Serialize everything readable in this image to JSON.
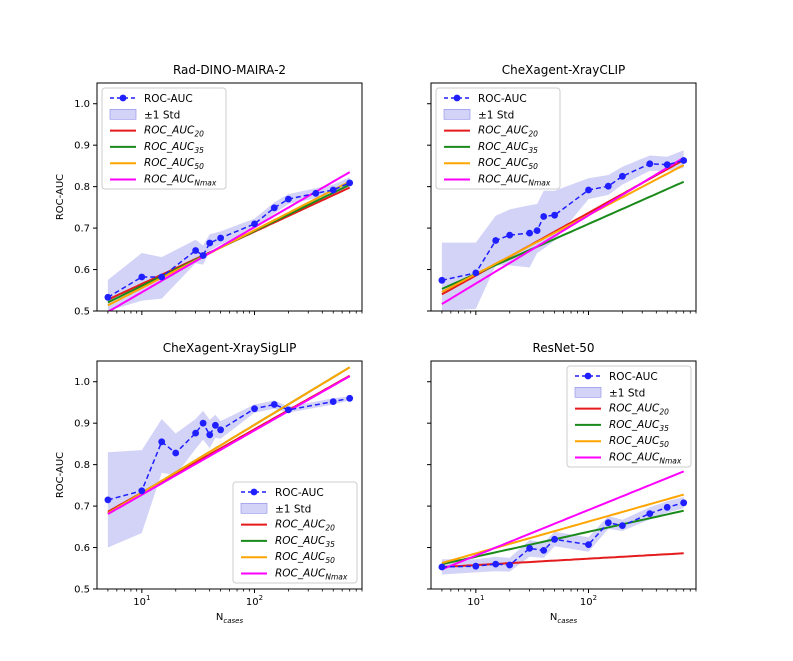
{
  "figure": {
    "ylabel": "ROC-AUC",
    "xlabel_main": "N",
    "xlabel_sub": "cases"
  },
  "colors": {
    "roc": "#1f1fff",
    "band": "#b6b6f4",
    "fit20": "#e41a1c",
    "fit35": "#1a8a1a",
    "fit50": "#ffa500",
    "fitN": "#ff00ff"
  },
  "legend_labels": {
    "roc": "ROC-AUC",
    "std": "±1 Std",
    "fit_prefix": "ROC_AUC",
    "fit_subs": [
      "20",
      "35",
      "50",
      "Nmax"
    ]
  },
  "chart_data": [
    {
      "type": "line",
      "title": "Rad-DINO-MAIRA-2",
      "xscale": "log",
      "xlim": [
        4,
        900
      ],
      "ylim": [
        0.5,
        1.05
      ],
      "x_ticks": [
        "10",
        "100"
      ],
      "y_ticks": [
        "0.5",
        "0.6",
        "0.7",
        "0.8",
        "0.9",
        "1.0"
      ],
      "show_x_ticklabels": false,
      "show_y_ticklabels": true,
      "legend_position": "top-left",
      "roc": {
        "x": [
          5,
          10,
          15,
          30,
          35,
          40,
          50,
          100,
          150,
          200,
          350,
          500,
          700
        ],
        "y": [
          0.533,
          0.582,
          0.582,
          0.646,
          0.634,
          0.664,
          0.676,
          0.71,
          0.749,
          0.77,
          0.784,
          0.792,
          0.809
        ]
      },
      "std_band": {
        "x": [
          5,
          10,
          15,
          30,
          35,
          40,
          50,
          100,
          150,
          200,
          350,
          500,
          700
        ],
        "lower": [
          0.5,
          0.525,
          0.53,
          0.615,
          0.612,
          0.645,
          0.66,
          0.698,
          0.735,
          0.758,
          0.772,
          0.78,
          0.795
        ],
        "upper": [
          0.575,
          0.64,
          0.63,
          0.672,
          0.658,
          0.685,
          0.692,
          0.723,
          0.762,
          0.782,
          0.796,
          0.805,
          0.823
        ]
      },
      "fits": [
        {
          "name": "ROC_AUC20",
          "a": 0.4394,
          "b": 0.0547
        },
        {
          "name": "ROC_AUC35",
          "a": 0.4285,
          "b": 0.0574
        },
        {
          "name": "ROC_AUC50",
          "a": 0.4166,
          "b": 0.0604
        },
        {
          "name": "ROC_AUCNmax",
          "a": 0.3882,
          "b": 0.0682
        }
      ]
    },
    {
      "type": "line",
      "title": "CheXagent-XrayCLIP",
      "xscale": "log",
      "xlim": [
        4,
        900
      ],
      "ylim": [
        0.5,
        1.05
      ],
      "x_ticks": [
        "10",
        "100"
      ],
      "y_ticks": [
        "0.5",
        "0.6",
        "0.7",
        "0.8",
        "0.9",
        "1.0"
      ],
      "show_x_ticklabels": false,
      "show_y_ticklabels": false,
      "legend_position": "top-left",
      "roc": {
        "x": [
          5,
          10,
          15,
          20,
          30,
          35,
          40,
          50,
          100,
          150,
          200,
          350,
          500,
          700
        ],
        "y": [
          0.574,
          0.592,
          0.67,
          0.683,
          0.688,
          0.694,
          0.728,
          0.731,
          0.792,
          0.801,
          0.825,
          0.855,
          0.853,
          0.863
        ]
      },
      "std_band": {
        "x": [
          5,
          10,
          15,
          20,
          30,
          35,
          40,
          50,
          100,
          150,
          200,
          350,
          500,
          700
        ],
        "lower": [
          0.5,
          0.505,
          0.61,
          0.61,
          0.605,
          0.64,
          0.65,
          0.67,
          0.77,
          0.78,
          0.805,
          0.838,
          0.838,
          0.845
        ],
        "upper": [
          0.665,
          0.665,
          0.73,
          0.745,
          0.755,
          0.758,
          0.79,
          0.79,
          0.82,
          0.828,
          0.848,
          0.875,
          0.872,
          0.888
        ]
      },
      "fits": [
        {
          "name": "ROC_AUC20",
          "a": 0.4346,
          "b": 0.0656
        },
        {
          "name": "ROC_AUC35",
          "a": 0.4691,
          "b": 0.0523
        },
        {
          "name": "ROC_AUC50",
          "a": 0.4464,
          "b": 0.0619
        },
        {
          "name": "ROC_AUCNmax",
          "a": 0.4019,
          "b": 0.0714
        }
      ]
    },
    {
      "type": "line",
      "title": "CheXagent-XraySigLIP",
      "xscale": "log",
      "xlim": [
        4,
        900
      ],
      "ylim": [
        0.5,
        1.05
      ],
      "x_ticks": [
        "10",
        "100"
      ],
      "y_ticks": [
        "0.5",
        "0.6",
        "0.7",
        "0.8",
        "0.9",
        "1.0"
      ],
      "show_x_ticklabels": true,
      "show_y_ticklabels": true,
      "legend_position": "bottom-right",
      "roc": {
        "x": [
          5,
          10,
          15,
          20,
          30,
          35,
          40,
          45,
          50,
          100,
          150,
          200,
          500,
          700
        ],
        "y": [
          0.715,
          0.737,
          0.855,
          0.828,
          0.876,
          0.9,
          0.872,
          0.895,
          0.884,
          0.935,
          0.945,
          0.932,
          0.952,
          0.96
        ]
      },
      "std_band": {
        "x": [
          5,
          10,
          15,
          20,
          30,
          35,
          40,
          45,
          50,
          100,
          150,
          200,
          500,
          700
        ],
        "lower": [
          0.6,
          0.635,
          0.78,
          0.775,
          0.838,
          0.86,
          0.84,
          0.865,
          0.862,
          0.925,
          0.935,
          0.925,
          0.945,
          0.955
        ],
        "upper": [
          0.83,
          0.835,
          0.91,
          0.875,
          0.91,
          0.93,
          0.908,
          0.92,
          0.905,
          0.945,
          0.955,
          0.94,
          0.96,
          0.965
        ]
      },
      "fits": [
        {
          "name": "ROC_AUC20",
          "a": 0.5795,
          "b": 0.0664
        },
        {
          "name": "ROC_AUC35",
          "a": 0.5677,
          "b": 0.0713
        },
        {
          "name": "ROC_AUC50",
          "a": 0.5677,
          "b": 0.0713
        },
        {
          "name": "ROC_AUCNmax",
          "a": 0.5725,
          "b": 0.0673
        }
      ]
    },
    {
      "type": "line",
      "title": "ResNet-50",
      "xscale": "log",
      "xlim": [
        4,
        900
      ],
      "ylim": [
        0.5,
        1.05
      ],
      "x_ticks": [
        "10",
        "100"
      ],
      "y_ticks": [
        "0.5",
        "0.6",
        "0.7",
        "0.8",
        "0.9",
        "1.0"
      ],
      "show_x_ticklabels": true,
      "show_y_ticklabels": false,
      "legend_position": "top-right",
      "roc": {
        "x": [
          5,
          10,
          15,
          20,
          30,
          40,
          50,
          100,
          150,
          200,
          350,
          500,
          700
        ],
        "y": [
          0.553,
          0.555,
          0.56,
          0.558,
          0.598,
          0.593,
          0.62,
          0.607,
          0.66,
          0.653,
          0.682,
          0.697,
          0.708
        ]
      },
      "std_band": {
        "x": [
          5,
          10,
          15,
          20,
          30,
          40,
          50,
          100,
          150,
          200,
          350,
          500,
          700
        ],
        "lower": [
          0.535,
          0.54,
          0.543,
          0.542,
          0.578,
          0.575,
          0.603,
          0.59,
          0.645,
          0.64,
          0.668,
          0.684,
          0.695
        ],
        "upper": [
          0.572,
          0.572,
          0.578,
          0.575,
          0.618,
          0.612,
          0.638,
          0.625,
          0.676,
          0.667,
          0.697,
          0.712,
          0.722
        ]
      },
      "fits": [
        {
          "name": "ROC_AUC20",
          "a": 0.5423,
          "b": 0.0067
        },
        {
          "name": "ROC_AUC35",
          "a": 0.5178,
          "b": 0.0261
        },
        {
          "name": "ROC_AUC50",
          "a": 0.5089,
          "b": 0.0334
        },
        {
          "name": "ROC_AUCNmax",
          "a": 0.4705,
          "b": 0.0478
        }
      ]
    }
  ]
}
